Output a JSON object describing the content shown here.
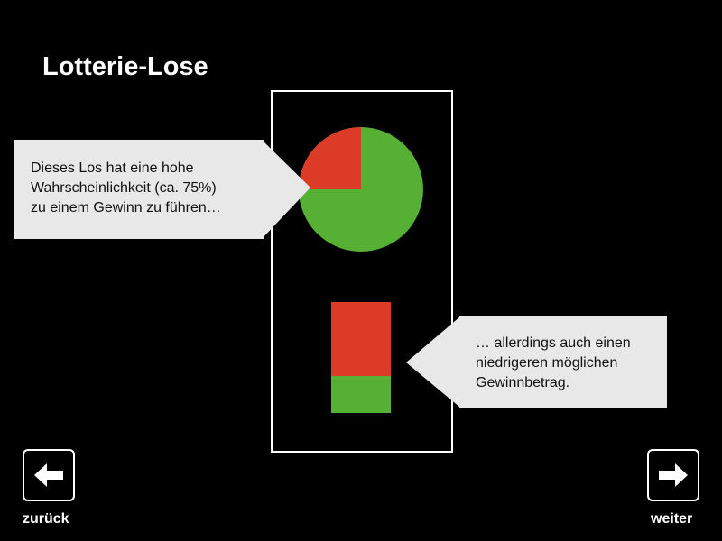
{
  "header": {
    "title": "Lotterie-Lose"
  },
  "lottery_ticket": {
    "win_probability": 0.75,
    "colors": {
      "win": "#55b033",
      "loss": "#db3b27"
    },
    "payout_bar": {
      "red_fraction": 0.67,
      "green_fraction": 0.33
    }
  },
  "callouts": {
    "probability": {
      "line1": "Dieses Los hat eine hohe",
      "line2": "Wahrscheinlichkeit (ca. 75%)",
      "line3": "zu einem Gewinn zu führen…"
    },
    "payout": {
      "line1": "… allerdings auch einen",
      "line2": "niedrigeren möglichen",
      "line3": "Gewinnbetrag."
    }
  },
  "navigation": {
    "back_label": "zurück",
    "back_icon": "arrow-left-icon",
    "next_label": "weiter",
    "next_icon": "arrow-right-icon"
  }
}
